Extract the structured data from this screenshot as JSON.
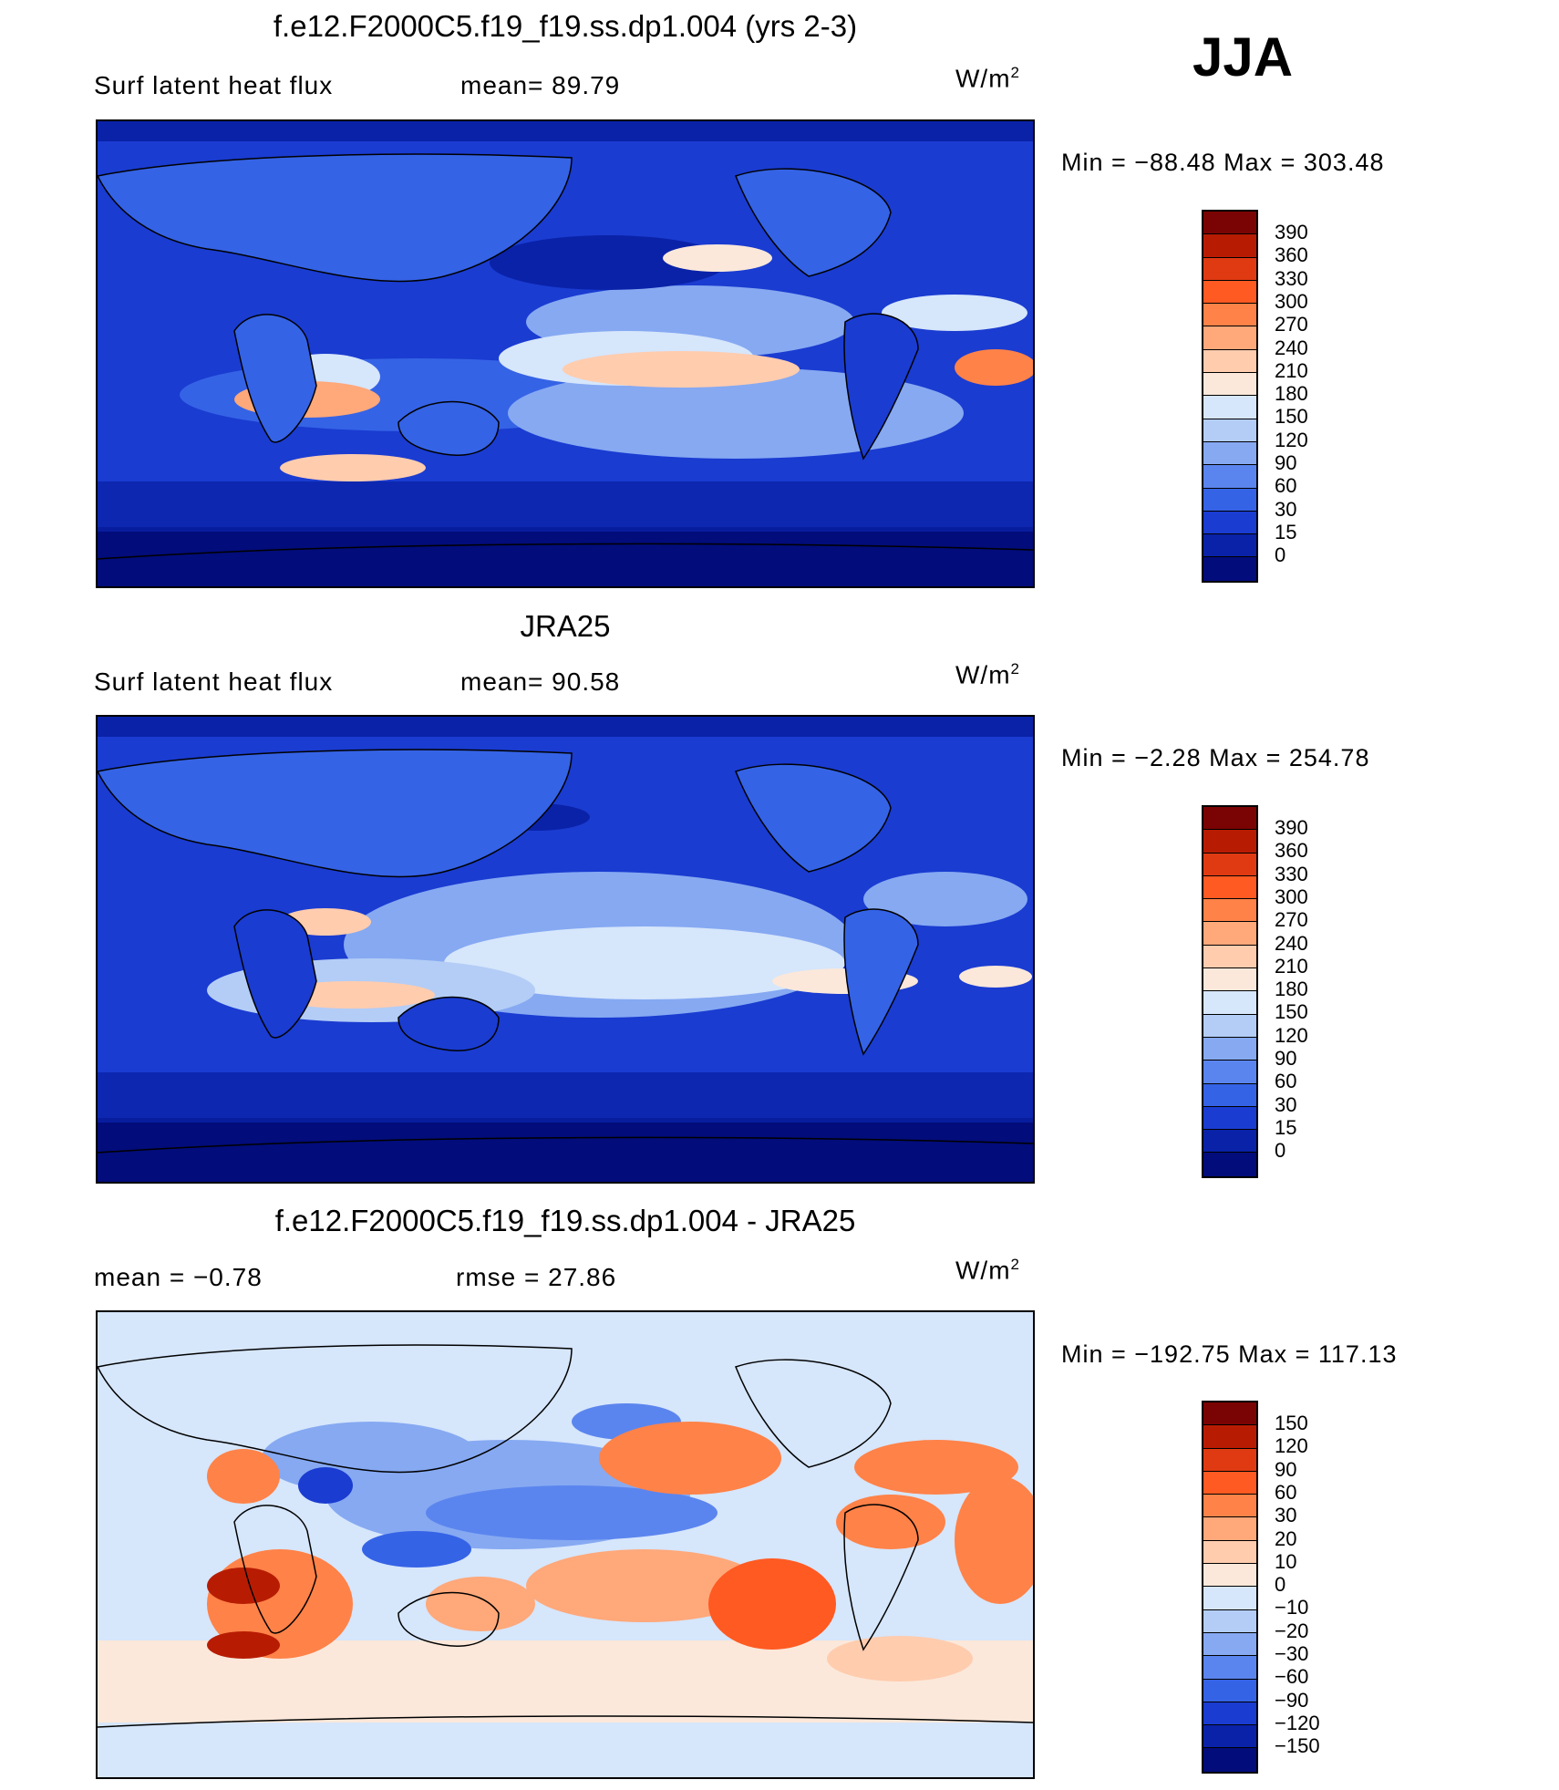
{
  "season": "JJA",
  "panels": [
    {
      "title": "f.e12.F2000C5.f19_f19.ss.dp1.004 (yrs 2-3)",
      "left_label": "Surf  latent  heat  flux",
      "right_label": "mean=   89.79",
      "units": "W/m",
      "units_sup": "2",
      "minmax": "Min  =  −88.48  Max  =  303.48",
      "colorbar_labels": [
        "390",
        "360",
        "330",
        "300",
        "270",
        "240",
        "210",
        "180",
        "150",
        "120",
        "90",
        "60",
        "30",
        "15",
        "0"
      ],
      "colors": [
        "#7a0403",
        "#b71c03",
        "#e03a12",
        "#ff5a22",
        "#ff8248",
        "#ffa87a",
        "#ffccae",
        "#fbe8da",
        "#d6e6fb",
        "#b3cdf6",
        "#86a9f2",
        "#5b85ee",
        "#3563e6",
        "#1a3cd1",
        "#0a22a8",
        "#020c7a"
      ]
    },
    {
      "title": "JRA25",
      "left_label": "Surf  latent  heat  flux",
      "right_label": "mean=   90.58",
      "units": "W/m",
      "units_sup": "2",
      "minmax": "Min  =    −2.28  Max  =  254.78",
      "colorbar_labels": [
        "390",
        "360",
        "330",
        "300",
        "270",
        "240",
        "210",
        "180",
        "150",
        "120",
        "90",
        "60",
        "30",
        "15",
        "0"
      ],
      "colors": [
        "#7a0403",
        "#b71c03",
        "#e03a12",
        "#ff5a22",
        "#ff8248",
        "#ffa87a",
        "#ffccae",
        "#fbe8da",
        "#d6e6fb",
        "#b3cdf6",
        "#86a9f2",
        "#5b85ee",
        "#3563e6",
        "#1a3cd1",
        "#0a22a8",
        "#020c7a"
      ]
    },
    {
      "title": "f.e12.F2000C5.f19_f19.ss.dp1.004 - JRA25",
      "left_label": "mean  =     −0.78",
      "right_label": "rmse  =    27.86",
      "units": "W/m",
      "units_sup": "2",
      "minmax": "Min  =  −192.75  Max  =  117.13",
      "colorbar_labels": [
        "150",
        "120",
        "90",
        "60",
        "30",
        "20",
        "10",
        "0",
        "−10",
        "−20",
        "−30",
        "−60",
        "−90",
        "−120",
        "−150"
      ],
      "colors": [
        "#7a0403",
        "#b71c03",
        "#e03a12",
        "#ff5a22",
        "#ff8248",
        "#ffa87a",
        "#ffccae",
        "#fbe8da",
        "#d6e6fb",
        "#b3cdf6",
        "#86a9f2",
        "#5b85ee",
        "#3563e6",
        "#1a3cd1",
        "#0a22a8",
        "#020c7a"
      ]
    }
  ]
}
